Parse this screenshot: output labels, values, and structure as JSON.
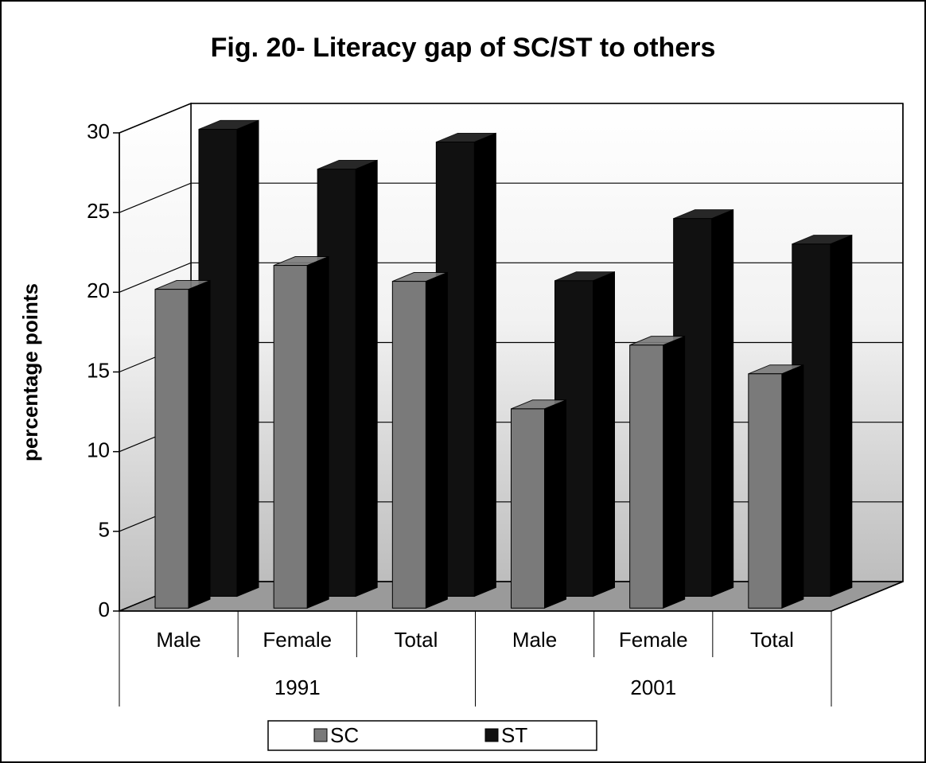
{
  "chart_data": {
    "type": "bar",
    "title": "Fig. 20-  Literacy gap of SC/ST to others",
    "y_label": "percentage points",
    "categories": [
      "Male",
      "Female",
      "Total",
      "Male",
      "Female",
      "Total"
    ],
    "groups": [
      "1991",
      "2001"
    ],
    "series": [
      {
        "name": "SC",
        "color": "#7a7a7a",
        "values": [
          20,
          21.5,
          20.5,
          12.5,
          16.5,
          14.7
        ]
      },
      {
        "name": "ST",
        "color": "#111111",
        "values": [
          29.3,
          26.8,
          28.5,
          19.8,
          23.7,
          22.1
        ]
      }
    ],
    "ylim": [
      0,
      30
    ],
    "yticks": [
      0,
      5,
      10,
      15,
      20,
      25,
      30
    ],
    "grid": true,
    "three_d": true,
    "legend": "bottom"
  }
}
